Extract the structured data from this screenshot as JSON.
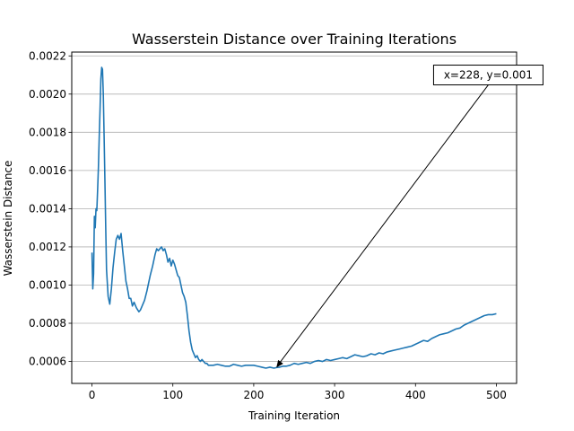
{
  "chart_data": {
    "type": "line",
    "title": "Wasserstein Distance over Training Iterations",
    "xlabel": "Training Iteration",
    "ylabel": "Wasserstein Distance",
    "xlim": [
      -25,
      525
    ],
    "ylim": [
      0.000485,
      0.00222
    ],
    "xticks": [
      0,
      100,
      200,
      300,
      400,
      500
    ],
    "xtick_labels": [
      "0",
      "100",
      "200",
      "300",
      "400",
      "500"
    ],
    "yticks": [
      0.0006,
      0.0008,
      0.001,
      0.0012,
      0.0014,
      0.0016,
      0.0018,
      0.002,
      0.0022
    ],
    "ytick_labels": [
      "0.0006",
      "0.0008",
      "0.0010",
      "0.0012",
      "0.0014",
      "0.0016",
      "0.0018",
      "0.0020",
      "0.0022"
    ],
    "grid": "horizontal",
    "line_color": "#1f77b4",
    "annotation": {
      "text": "x=228, y=0.001",
      "point": [
        228,
        0.000568
      ],
      "text_anchor_value": [
        490,
        0.0021
      ]
    },
    "series": [
      {
        "x": [
          0,
          1,
          2,
          3,
          4,
          5,
          6,
          7,
          8,
          9,
          10,
          11,
          12,
          13,
          14,
          15,
          16,
          17,
          18,
          20,
          22,
          24,
          26,
          28,
          30,
          32,
          34,
          36,
          38,
          40,
          42,
          44,
          46,
          48,
          50,
          52,
          55,
          58,
          60,
          62,
          65,
          68,
          70,
          72,
          75,
          78,
          80,
          82,
          84,
          86,
          88,
          90,
          92,
          94,
          96,
          98,
          100,
          102,
          104,
          106,
          108,
          110,
          112,
          114,
          116,
          118,
          120,
          122,
          124,
          126,
          128,
          130,
          132,
          134,
          136,
          138,
          140,
          142,
          144,
          146,
          148,
          150,
          155,
          160,
          165,
          170,
          175,
          180,
          185,
          190,
          195,
          200,
          205,
          210,
          215,
          220,
          225,
          228,
          232,
          236,
          240,
          245,
          250,
          255,
          260,
          265,
          270,
          275,
          280,
          285,
          290,
          295,
          300,
          305,
          310,
          315,
          320,
          325,
          330,
          335,
          340,
          345,
          350,
          355,
          360,
          365,
          370,
          375,
          380,
          385,
          390,
          395,
          400,
          405,
          410,
          415,
          420,
          425,
          430,
          435,
          440,
          445,
          450,
          455,
          460,
          465,
          470,
          475,
          480,
          485,
          490,
          495,
          500
        ],
        "y": [
          0.00117,
          0.00098,
          0.00106,
          0.00136,
          0.0013,
          0.0014,
          0.00139,
          0.0015,
          0.00162,
          0.00178,
          0.00192,
          0.00208,
          0.00214,
          0.00213,
          0.002,
          0.00178,
          0.00155,
          0.0013,
          0.00108,
          0.00094,
          0.0009,
          0.00098,
          0.00109,
          0.00117,
          0.00124,
          0.00126,
          0.00124,
          0.00127,
          0.00118,
          0.0011,
          0.00102,
          0.00098,
          0.00093,
          0.00093,
          0.00089,
          0.00091,
          0.00088,
          0.00086,
          0.00087,
          0.00089,
          0.00092,
          0.00097,
          0.00101,
          0.00105,
          0.0011,
          0.00116,
          0.00119,
          0.00118,
          0.00119,
          0.0012,
          0.00118,
          0.00119,
          0.00116,
          0.00112,
          0.00114,
          0.0011,
          0.00113,
          0.00111,
          0.00108,
          0.00105,
          0.00104,
          0.001,
          0.00096,
          0.00094,
          0.00091,
          0.00084,
          0.00076,
          0.0007,
          0.00066,
          0.00064,
          0.00062,
          0.00063,
          0.00061,
          0.0006,
          0.00061,
          0.0006,
          0.00059,
          0.00059,
          0.00058,
          0.00058,
          0.00058,
          0.00058,
          0.000585,
          0.00058,
          0.000575,
          0.000575,
          0.000585,
          0.00058,
          0.000575,
          0.00058,
          0.00058,
          0.00058,
          0.000575,
          0.00057,
          0.000565,
          0.00057,
          0.000565,
          0.000568,
          0.00057,
          0.000575,
          0.000575,
          0.00058,
          0.00059,
          0.000585,
          0.00059,
          0.000595,
          0.00059,
          0.0006,
          0.000605,
          0.0006,
          0.00061,
          0.000605,
          0.00061,
          0.000615,
          0.00062,
          0.000615,
          0.000625,
          0.000635,
          0.00063,
          0.000625,
          0.00063,
          0.00064,
          0.000635,
          0.000645,
          0.00064,
          0.00065,
          0.000655,
          0.00066,
          0.000665,
          0.00067,
          0.000675,
          0.00068,
          0.00069,
          0.0007,
          0.00071,
          0.000705,
          0.00072,
          0.00073,
          0.00074,
          0.000745,
          0.00075,
          0.00076,
          0.00077,
          0.000775,
          0.00079,
          0.0008,
          0.00081,
          0.00082,
          0.00083,
          0.00084,
          0.000845,
          0.000845,
          0.00085
        ]
      }
    ]
  }
}
